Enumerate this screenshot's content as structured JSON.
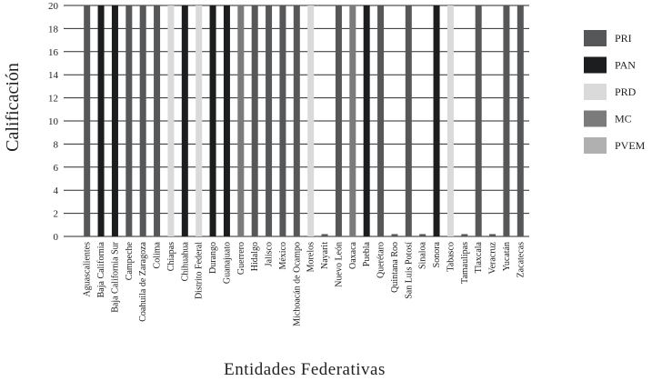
{
  "chart_data": {
    "type": "bar",
    "title": "",
    "xlabel": "Entidades Federativas",
    "ylabel": "Calificación",
    "ylim": [
      0,
      20
    ],
    "yticks": [
      0,
      2,
      4,
      6,
      8,
      10,
      12,
      14,
      16,
      18,
      20
    ],
    "grid": "horizontal",
    "legend_position": "right",
    "categories": [
      "Aguascalientes",
      "Baja California",
      "Baja California Sur",
      "Campeche",
      "Coahuila de Zaragoza",
      "Colima",
      "Chiapas",
      "Chihuahua",
      "Distrito Federal",
      "Durango",
      "Guanajuato",
      "Guerrero",
      "Hidalgo",
      "Jalisco",
      "México",
      "Michoacán de Ocampo",
      "Morelos",
      "Nayarit",
      "Nuevo León",
      "Oaxaca",
      "Puebla",
      "Querétaro",
      "Quintana Roo",
      "San Luis Potosí",
      "Sinaloa",
      "Sonora",
      "Tabasco",
      "Tamaulipas",
      "Tlaxcala",
      "Veracruz",
      "Yucatán",
      "Zacatecas"
    ],
    "values": [
      20,
      20,
      20,
      20,
      20,
      20,
      20,
      20,
      20,
      20,
      20,
      20,
      20,
      20,
      20,
      20,
      20,
      0.2,
      20,
      20,
      20,
      20,
      0.2,
      20,
      0.2,
      20,
      20,
      0.2,
      20,
      0.2,
      20,
      20
    ],
    "bar_party": [
      "PRI",
      "PAN",
      "PAN",
      "PRI",
      "PRI",
      "PRI",
      "PRD",
      "PAN",
      "PRD",
      "PAN",
      "PAN",
      "MC",
      "PRI",
      "PRI",
      "PRI",
      "PRI",
      "PRD",
      "PRI",
      "PRI",
      "MC",
      "PAN",
      "PRI",
      "PRI",
      "PRI",
      "PRI",
      "PAN",
      "PRD",
      "PRI",
      "PRI",
      "PRI",
      "PRI",
      "PRI"
    ],
    "series": [
      {
        "name": "PRI",
        "color": "#555759"
      },
      {
        "name": "PAN",
        "color": "#1b1d1f"
      },
      {
        "name": "PRD",
        "color": "#dadada"
      },
      {
        "name": "MC",
        "color": "#7b7b7b"
      },
      {
        "name": "PVEM",
        "color": "#b0b0b0"
      }
    ]
  }
}
